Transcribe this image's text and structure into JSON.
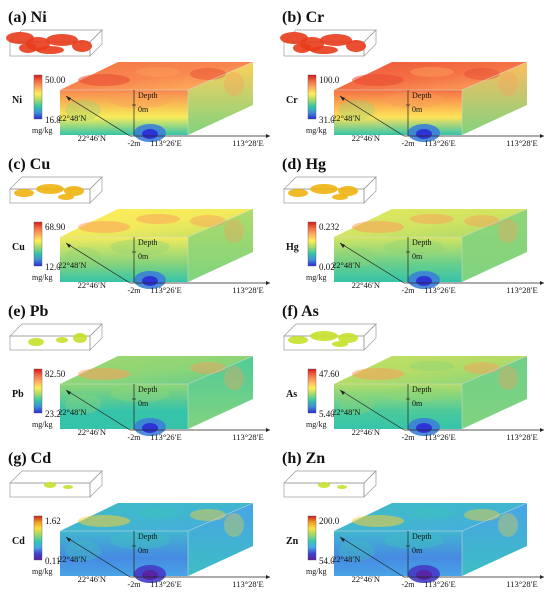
{
  "common": {
    "unit": "mg/kg",
    "depth_label": "Depth",
    "surface_label": "0m",
    "bottom_label": "-2m",
    "lat_far": "22°48′N",
    "lat_near": "22°46′N",
    "lon_left": "113°26′E",
    "lon_right": "113°28′E"
  },
  "panels": [
    {
      "letter": "(a)",
      "element": "Ni",
      "max": "50.00",
      "min": "16.80",
      "level": 0.8,
      "iso": "rich"
    },
    {
      "letter": "(b)",
      "element": "Cr",
      "max": "100.0",
      "min": "31.00",
      "level": 0.85,
      "iso": "rich"
    },
    {
      "letter": "(c)",
      "element": "Cu",
      "max": "68.90",
      "min": "12.00",
      "level": 0.55,
      "iso": "sparse"
    },
    {
      "letter": "(d)",
      "element": "Hg",
      "max": "0.232",
      "min": "0.023",
      "level": 0.5,
      "iso": "sparse"
    },
    {
      "letter": "(e)",
      "element": "Pb",
      "max": "82.50",
      "min": "23.20",
      "level": 0.4,
      "iso": "few"
    },
    {
      "letter": "(f)",
      "element": "As",
      "max": "47.60",
      "min": "5.40",
      "level": 0.45,
      "iso": "sparse"
    },
    {
      "letter": "(g)",
      "element": "Cd",
      "max": "1.62",
      "min": "0.111",
      "level": 0.35,
      "iso": "tiny"
    },
    {
      "letter": "(h)",
      "element": "Zn",
      "max": "200.0",
      "min": "54.00",
      "level": 0.35,
      "iso": "tiny"
    }
  ],
  "palettes": {
    "rainbow": [
      "#d7191c",
      "#f46d43",
      "#fdae61",
      "#ffee58",
      "#a6d96a",
      "#35c6a8",
      "#3f8fd6",
      "#2b2bd6"
    ],
    "cd_zn": [
      "#c81e1e",
      "#f0a020",
      "#f8e040",
      "#9ed86a",
      "#38c8b0",
      "#48a8e8",
      "#4040d0",
      "#5a20a0"
    ]
  }
}
